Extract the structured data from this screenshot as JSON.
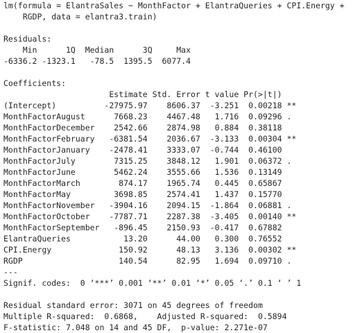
{
  "call": [
    "lm(formula = ElantraSales ~ MonthFactor + ElantraQueries + CPI.Energy +",
    "RGDP, data = elantra3.train)"
  ],
  "residuals": {
    "title": "Residuals:",
    "headers": [
      "Min",
      "1Q",
      "Median",
      "3Q",
      "Max"
    ],
    "values": [
      "-6336.2",
      "-1323.1",
      "-78.5",
      "1395.5",
      "6077.4"
    ]
  },
  "coefficients": {
    "title": "Coefficients:",
    "headers": [
      "Estimate",
      "Std. Error",
      "t value",
      "Pr(>|t|)"
    ],
    "rows": [
      {
        "cells": [
          "(Intercept)",
          "-27975.97",
          "8606.37",
          "-3.251",
          "0.00218"
        ],
        "signif": "**"
      },
      {
        "cells": [
          "MonthFactorAugust",
          "7668.23",
          "4467.48",
          "1.716",
          "0.09296"
        ],
        "signif": "."
      },
      {
        "cells": [
          "MonthFactorDecember",
          "2542.66",
          "2874.98",
          "0.884",
          "0.38118"
        ]
      },
      {
        "cells": [
          "MonthFactorFebruary",
          "-6381.54",
          "2036.67",
          "-3.133",
          "0.00304"
        ],
        "signif": "**"
      },
      {
        "cells": [
          "MonthFactorJanuary",
          "-2478.41",
          "3333.07",
          "-0.744",
          "0.46100"
        ]
      },
      {
        "cells": [
          "MonthFactorJuly",
          "7315.25",
          "3848.12",
          "1.901",
          "0.06372"
        ],
        "signif": "."
      },
      {
        "cells": [
          "MonthFactorJune",
          "5462.24",
          "3555.66",
          "1.536",
          "0.13149"
        ]
      },
      {
        "cells": [
          "MonthFactorMarch",
          "874.17",
          "1965.74",
          "0.445",
          "0.65867"
        ]
      },
      {
        "cells": [
          "MonthFactorMay",
          "3698.85",
          "2574.41",
          "1.437",
          "0.15770"
        ]
      },
      {
        "cells": [
          "MonthFactorNovember",
          "-3904.16",
          "2094.15",
          "-1.864",
          "0.06881"
        ],
        "signif": "."
      },
      {
        "cells": [
          "MonthFactorOctober",
          "-7787.71",
          "2287.38",
          "-3.405",
          "0.00140"
        ],
        "signif": "**"
      },
      {
        "cells": [
          "MonthFactorSeptember",
          "-896.45",
          "2150.93",
          "-0.417",
          "0.67882"
        ]
      },
      {
        "cells": [
          "ElantraQueries",
          "13.20",
          "44.00",
          "0.300",
          "0.76552"
        ]
      },
      {
        "cells": [
          "CPI.Energy",
          "150.92",
          "48.13",
          "3.136",
          "0.00302"
        ],
        "signif": "**"
      },
      {
        "cells": [
          "RGDP",
          "140.54",
          "82.95",
          "1.694",
          "0.09710"
        ],
        "signif": "."
      }
    ],
    "separator": "---",
    "signif_codes": "Signif. codes:  0 ‘***’ 0.001 ‘**’ 0.01 ‘*’ 0.05 ‘.’ 0.1 ‘ ’ 1"
  },
  "summary": [
    "Residual standard error: 3071 on 45 degrees of freedom",
    "Multiple R-squared:  0.6868,    Adjusted R-squared:  0.5894",
    "F-statistic: 7.048 on 14 and 45 DF,  p-value: 2.271e-07"
  ]
}
